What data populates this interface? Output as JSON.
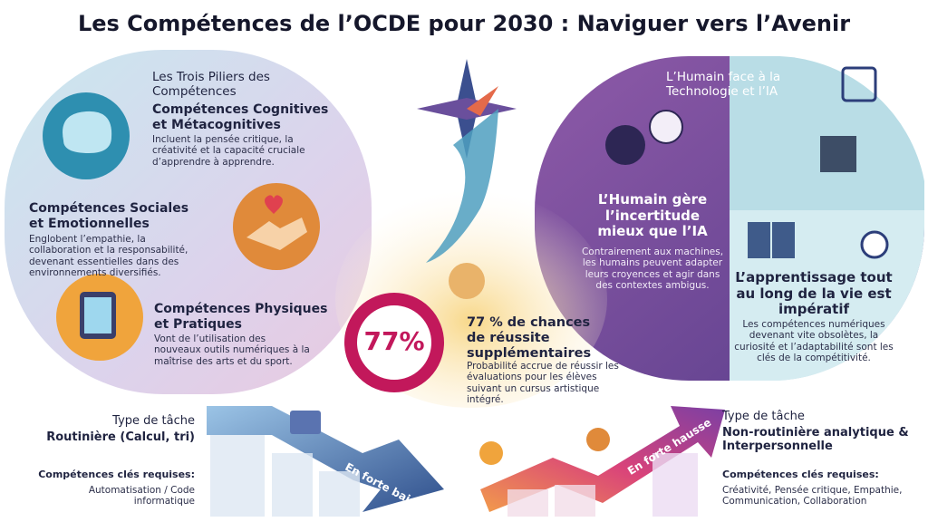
{
  "header": {
    "title": "Les Compétences de l’OCDE pour 2030 : Naviguer vers l’Avenir"
  },
  "pillars": {
    "heading": "Les Trois Piliers des Compétences",
    "items": [
      {
        "title": "Compétences Cognitives et Métacognitives",
        "text": "Incluent la pensée critique, la créativité et la capacité cruciale d’apprendre à apprendre."
      },
      {
        "title": "Compétences Sociales et Emotionnelles",
        "text": "Englobent l’empathie, la collaboration et la responsabilité, devenant essentielles dans des environnements diversifiés."
      },
      {
        "title": "Compétences Physiques et Pratiques",
        "text": "Vont de l’utilisation des nouveaux outils numériques à la maîtrise des arts et du sport."
      }
    ]
  },
  "arts": {
    "stat": "77%",
    "title": "77 % de chances de réussite supplémentaires",
    "text": "Probabilité accrue de réussir les évaluations pour les élèves suivant un cursus artistique intégré."
  },
  "technology": {
    "heading": "L’Humain face à la Technologie et l’IA",
    "items": [
      {
        "title": "L’Humain gère l’incertitude mieux que l’IA",
        "text": "Contrairement aux machines, les humains peuvent adapter leurs croyences et agir dans des contextes ambigus."
      },
      {
        "title": "L’apprentissage tout au long de la vie est impératif",
        "text": "Les compétences numériques devenant vite obsolètes, la curiosité et l’adaptabilité sont les clés de la compétitivité."
      }
    ]
  },
  "tasks": [
    {
      "label": "Type de tâche",
      "type": "Routinière (Calcul, tri)",
      "skills_label": "Compétences clés requises:",
      "skills": "Automatisation / Code informatique",
      "trend": "En forte baisse"
    },
    {
      "label": "Type de tâche",
      "type": "Non-routinière analytique & Interpersonnelle",
      "skills_label": "Compétences clés requises:",
      "skills": "Créativité, Pensée critique, Empathie, Communication, Collaboration",
      "trend": "En forte hausse"
    }
  ]
}
